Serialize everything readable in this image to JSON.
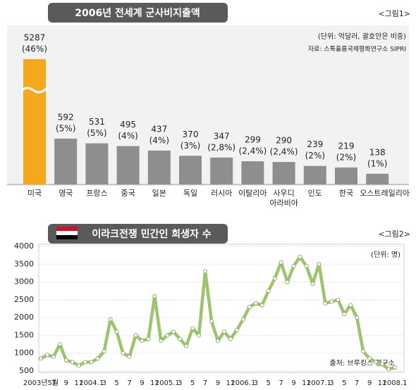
{
  "chart_data": [
    {
      "type": "bar",
      "title": "2006년 전세계 군사비지출액",
      "figure_label": "<그림1>",
      "unit_note": "(단위: 억달러, 괄호안은 비중)",
      "source": "자료: 스톡홀름국제평화연구소 SIPRI",
      "categories": [
        "미국",
        "영국",
        "프랑스",
        "중국",
        "일본",
        "독일",
        "러시아",
        "이탈리아",
        "사우디 아라비아",
        "인도",
        "한국",
        "오스트레일리아"
      ],
      "values": [
        5287,
        592,
        531,
        495,
        437,
        370,
        347,
        299,
        290,
        239,
        219,
        138
      ],
      "shares": {
        "values": [
          46,
          5,
          5,
          4,
          4,
          3,
          2.8,
          2.4,
          2.4,
          2,
          2,
          1
        ],
        "value_labels": [
          "(46%)",
          "(5%)",
          "(5%)",
          "(4%)",
          "(4%)",
          "(3%)",
          "(2,8%)",
          "(2,4%)",
          "(2,4%)",
          "(2%)",
          "(2%)",
          "(1%)"
        ]
      },
      "colors": [
        "#f5a81c",
        "#8e8e8e",
        "#8e8e8e",
        "#8e8e8e",
        "#8e8e8e",
        "#8e8e8e",
        "#8e8e8e",
        "#8e8e8e",
        "#8e8e8e",
        "#8e8e8e",
        "#8e8e8e",
        "#8e8e8e"
      ]
    },
    {
      "type": "line",
      "title": "이라크전쟁 민간인 희생자 수",
      "figure_label": "<그림2>",
      "unit_note": "(단위: 명)",
      "source": "출처: 브루킹스 연구소",
      "categories": [
        "2003년5월",
        null,
        "7",
        null,
        "9",
        null,
        "11",
        null,
        "2004.1",
        null,
        "3",
        null,
        "5",
        null,
        "7",
        null,
        "9",
        null,
        "11",
        null,
        "2005.1",
        null,
        "3",
        null,
        "5",
        null,
        "7",
        null,
        "9",
        null,
        "11",
        null,
        "2006.1",
        null,
        "3",
        null,
        "5",
        null,
        "7",
        null,
        "9",
        null,
        "11",
        null,
        "2007.1",
        null,
        "3",
        null,
        "5",
        null,
        "7",
        null,
        "9",
        null,
        "11",
        null,
        "2008.1"
      ],
      "values": [
        850,
        950,
        900,
        1250,
        800,
        750,
        650,
        750,
        750,
        850,
        1050,
        1950,
        1600,
        1000,
        900,
        1500,
        1350,
        1400,
        2600,
        1350,
        1500,
        1600,
        1400,
        1200,
        1700,
        1500,
        3300,
        1900,
        1350,
        1600,
        1400,
        1650,
        1950,
        2300,
        2400,
        2350,
        2750,
        3100,
        3550,
        3000,
        3450,
        3700,
        3450,
        2950,
        3500,
        2400,
        2450,
        2500,
        2100,
        2350,
        2000,
        1050,
        850,
        750,
        700,
        550,
        600
      ],
      "color": "#9cc46c",
      "ylim": [
        500,
        4000
      ],
      "yticks": [
        500,
        1000,
        1500,
        2000,
        2500,
        3000,
        3500,
        4000
      ],
      "grid": true
    }
  ]
}
